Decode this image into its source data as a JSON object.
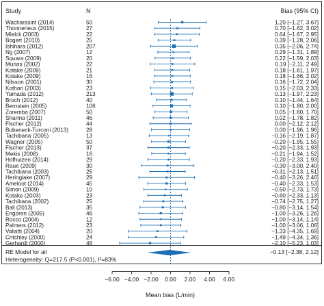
{
  "chart_data": {
    "type": "scatter",
    "subtype": "forest-plot",
    "headers": {
      "study": "Study",
      "n": "N",
      "bias": "Bias (95% CI)"
    },
    "xlabel": "Mean bias (L/min)",
    "xlim": [
      -6.5,
      6.5
    ],
    "xticks": [
      -6,
      -4,
      -2,
      0,
      2,
      4,
      6
    ],
    "xtick_labels": [
      "−6.00",
      "−4.00",
      "−2.00",
      "0.00",
      "2.00",
      "4.00",
      "6.00"
    ],
    "reference_line": 0,
    "colors": {
      "marker": "#1f6fb5",
      "frame": "#333333",
      "reference": "#1f6fb5"
    },
    "studies": [
      {
        "study": "Wacharasint (2014)",
        "n": "50",
        "bias": 1.2,
        "lo": -1.27,
        "hi": 3.67,
        "label": "1.20 [−1.27, 3.67]"
      },
      {
        "study": "Thonnerieux (2015)",
        "n": "27",
        "bias": 0.7,
        "lo": -1.62,
        "hi": 3.02,
        "label": "0.70 [−1.62, 3.02]"
      },
      {
        "study": "Mielck (2003)",
        "n": "22",
        "bias": 0.64,
        "lo": -1.67,
        "hi": 2.95,
        "label": "0.64 [−1.67, 2.95]"
      },
      {
        "study": "Bogert (2010)",
        "n": "25",
        "bias": 0.39,
        "lo": -1.28,
        "hi": 2.06,
        "label": "0.39 [−1.28, 2.06]"
      },
      {
        "study": "Ishihara (2012)",
        "n": "207",
        "bias": 0.35,
        "lo": -2.06,
        "hi": 2.74,
        "label": "0.35 [−2.06, 2.74]"
      },
      {
        "study": "Ng (2007)",
        "n": "12",
        "bias": 0.29,
        "lo": -1.31,
        "hi": 1.89,
        "label": "0.29 [−1.31, 1.89]"
      },
      {
        "study": "Squara (2009)",
        "n": "20",
        "bias": 0.22,
        "lo": -1.59,
        "hi": 2.03,
        "label": "0.22 [−1.59, 2.03]"
      },
      {
        "study": "Murias (2002)",
        "n": "22",
        "bias": 0.19,
        "lo": -2.11,
        "hi": 2.49,
        "label": "0.19 [−2.11, 2.49]"
      },
      {
        "study": "Kotake (2009)",
        "n": "21",
        "bias": 0.18,
        "lo": -1.61,
        "hi": 1.97,
        "label": "0.18 [−1.61, 1.97]"
      },
      {
        "study": "Kotake (2009)",
        "n": "16",
        "bias": 0.18,
        "lo": -1.66,
        "hi": 2.02,
        "label": "0.18 [−1.66, 2.02]"
      },
      {
        "study": "Nilsson (2001)",
        "n": "30",
        "bias": 0.16,
        "lo": -1.72,
        "hi": 2.04,
        "label": "0.16 [−1.72, 2.04]"
      },
      {
        "study": "Kothari (2003)",
        "n": "23",
        "bias": 0.15,
        "lo": -2.03,
        "hi": 2.33,
        "label": "0.15 [−2.03, 2.33]"
      },
      {
        "study": "Yamada (2012)",
        "n": "213",
        "bias": 0.13,
        "lo": -1.97,
        "hi": 2.23,
        "label": "0.13 [−1.97, 2.23]"
      },
      {
        "study": "Broch (2012)",
        "n": "40",
        "bias": 0.1,
        "lo": -1.44,
        "hi": 1.64,
        "label": "0.10 [−1.44, 1.64]"
      },
      {
        "study": "Bernstein (2005)",
        "n": "106",
        "bias": 0.1,
        "lo": -1.8,
        "hi": 2.0,
        "label": "0.10 [−1.80, 2.00]"
      },
      {
        "study": "Zoremba (2007)",
        "n": "50",
        "bias": 0.05,
        "lo": -1.6,
        "hi": 1.7,
        "label": "0.05 [−1.60, 1.70]"
      },
      {
        "study": "Sharma (2011)",
        "n": "46",
        "bias": 0.02,
        "lo": -1.78,
        "hi": 1.82,
        "label": "0.02 [−1.78, 1.82]"
      },
      {
        "study": "Fischer (2012)",
        "n": "44",
        "bias": 0.0,
        "lo": -2.12,
        "hi": 2.12,
        "label": "0.00 [−2.12, 2.12]"
      },
      {
        "study": "Bubeneck-Turconi (2013)",
        "n": "28",
        "bias": 0.0,
        "lo": -1.96,
        "hi": 1.96,
        "label": "0.00 [−1.96, 1.96]"
      },
      {
        "study": "Tachibana (2005)",
        "n": "13",
        "bias": -0.16,
        "lo": -2.19,
        "hi": 1.87,
        "label": "−0.16 [−2.19, 1.87]"
      },
      {
        "study": "Wagner (2005)",
        "n": "50",
        "bias": -0.2,
        "lo": -1.95,
        "hi": 1.55,
        "label": "−0.20 [−1.95, 1.55]"
      },
      {
        "study": "Fischer (2013)",
        "n": "37",
        "bias": -0.2,
        "lo": -2.33,
        "hi": 1.93,
        "label": "−0.20 [−2.33, 1.93]"
      },
      {
        "study": "Mekis (2008)",
        "n": "16",
        "bias": -0.21,
        "lo": -1.94,
        "hi": 1.52,
        "label": "−0.21 [−1.94, 1.52]"
      },
      {
        "study": "Hofhuizen (2014)",
        "n": "29",
        "bias": -0.2,
        "lo": -2.33,
        "hi": 1.93,
        "label": "−0.20 [−2.33, 1.93]"
      },
      {
        "study": "Raue (2009)",
        "n": "30",
        "bias": -0.3,
        "lo": -3.0,
        "hi": 2.4,
        "label": "−0.30 [−3.00, 2.40]"
      },
      {
        "study": "Tachibana (2003)",
        "n": "25",
        "bias": -0.31,
        "lo": -2.13,
        "hi": 1.51,
        "label": "−0.31 [−2.13, 1.51]"
      },
      {
        "study": "Heringlake (2007)",
        "n": "29",
        "bias": -0.4,
        "lo": -3.26,
        "hi": 2.46,
        "label": "−0.40 [−3.26, 2.46]"
      },
      {
        "study": "Ameloot (2014)",
        "n": "45",
        "bias": -0.4,
        "lo": -2.33,
        "hi": 1.53,
        "label": "−0.40 [−2.33, 1.53]"
      },
      {
        "study": "Simon (2009)",
        "n": "10",
        "bias": -0.5,
        "lo": -2.73,
        "hi": 1.73,
        "label": "−0.50 [−2.73, 1.73]"
      },
      {
        "study": "Kotake (2003)",
        "n": "23",
        "bias": -0.6,
        "lo": -2.33,
        "hi": 1.13,
        "label": "−0.60 [−2.33, 1.13]"
      },
      {
        "study": "Tachibana (2002)",
        "n": "25",
        "bias": -0.74,
        "lo": -2.75,
        "hi": 1.27,
        "label": "−0.74 [−2.75, 1.27]"
      },
      {
        "study": "Ball (2013)",
        "n": "35",
        "bias": -0.8,
        "lo": -3.14,
        "hi": 1.54,
        "label": "−0.80 [−3.14, 1.54]"
      },
      {
        "study": "Engoren (2005)",
        "n": "46",
        "bias": -1.0,
        "lo": -3.26,
        "hi": 1.26,
        "label": "−1.00 [−3.26, 1.26]"
      },
      {
        "study": "Rocco (2004)",
        "n": "12",
        "bias": -1.0,
        "lo": -3.14,
        "hi": 1.14,
        "label": "−1.00 [−3.14, 1.14]"
      },
      {
        "study": "Palmers (2012)",
        "n": "23",
        "bias": -1.0,
        "lo": -3.06,
        "hi": 1.06,
        "label": "−1.00 [−3.06, 1.06]"
      },
      {
        "study": "Valiatti (2004)",
        "n": "20",
        "bias": -1.33,
        "lo": -4.35,
        "hi": 1.69,
        "label": "−1.33 [−4.35, 1.69]"
      },
      {
        "study": "Critchley (2000)",
        "n": "24",
        "bias": -1.49,
        "lo": -4.34,
        "hi": 1.36,
        "label": "−1.49 [−4.34, 1.36]"
      },
      {
        "study": "Gerhardt (2000)",
        "n": "46",
        "bias": -2.1,
        "lo": -5.23,
        "hi": 1.03,
        "label": "−2.10 [−5.23, 1.03]"
      }
    ],
    "summary": {
      "label": "RE Model for all",
      "bias": -0.13,
      "lo": -2.38,
      "hi": 2.12,
      "value_label": "−0.13 [−2.38, 2.12]",
      "heterogeneity": "Heterogeneity: Q=217.5 (P<0.001), I²=83%"
    }
  }
}
